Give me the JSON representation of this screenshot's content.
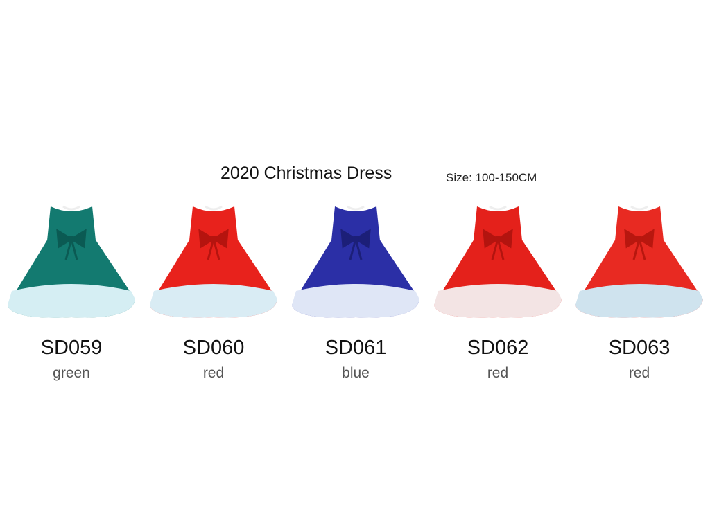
{
  "header": {
    "title": "2020 Christmas Dress",
    "size": "Size: 100-150CM"
  },
  "products": [
    {
      "code": "SD059",
      "color": "green"
    },
    {
      "code": "SD060",
      "color": "red"
    },
    {
      "code": "SD061",
      "color": "blue"
    },
    {
      "code": "SD062",
      "color": "red"
    },
    {
      "code": "SD063",
      "color": "red"
    }
  ]
}
